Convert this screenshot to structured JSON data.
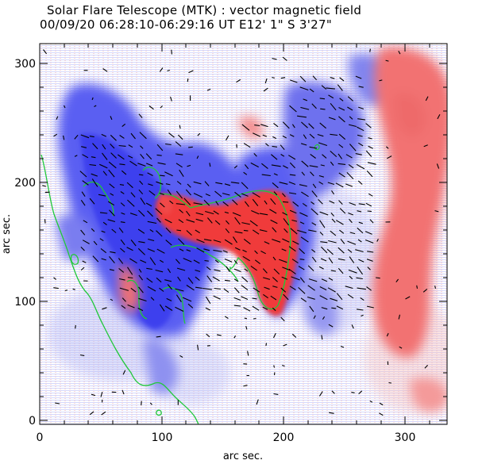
{
  "header": {
    "title": "Solar Flare Telescope (MTK) : vector magnetic field",
    "subtitle": "00/09/20  06:28:10-06:29:16 UT    E12' 1\"   S 3'27\""
  },
  "axes": {
    "x_label": "arc sec.",
    "y_label": "arc sec.",
    "x_ticks": [
      "0",
      "100",
      "200",
      "300"
    ],
    "y_ticks": [
      "0",
      "100",
      "200",
      "300"
    ]
  },
  "colors": {
    "positive_polarity": "#f06060",
    "negative_polarity": "#4a4ef0",
    "neutral_line": "#21c83a",
    "field_vectors": "#000000",
    "background": "#ffffff"
  }
}
